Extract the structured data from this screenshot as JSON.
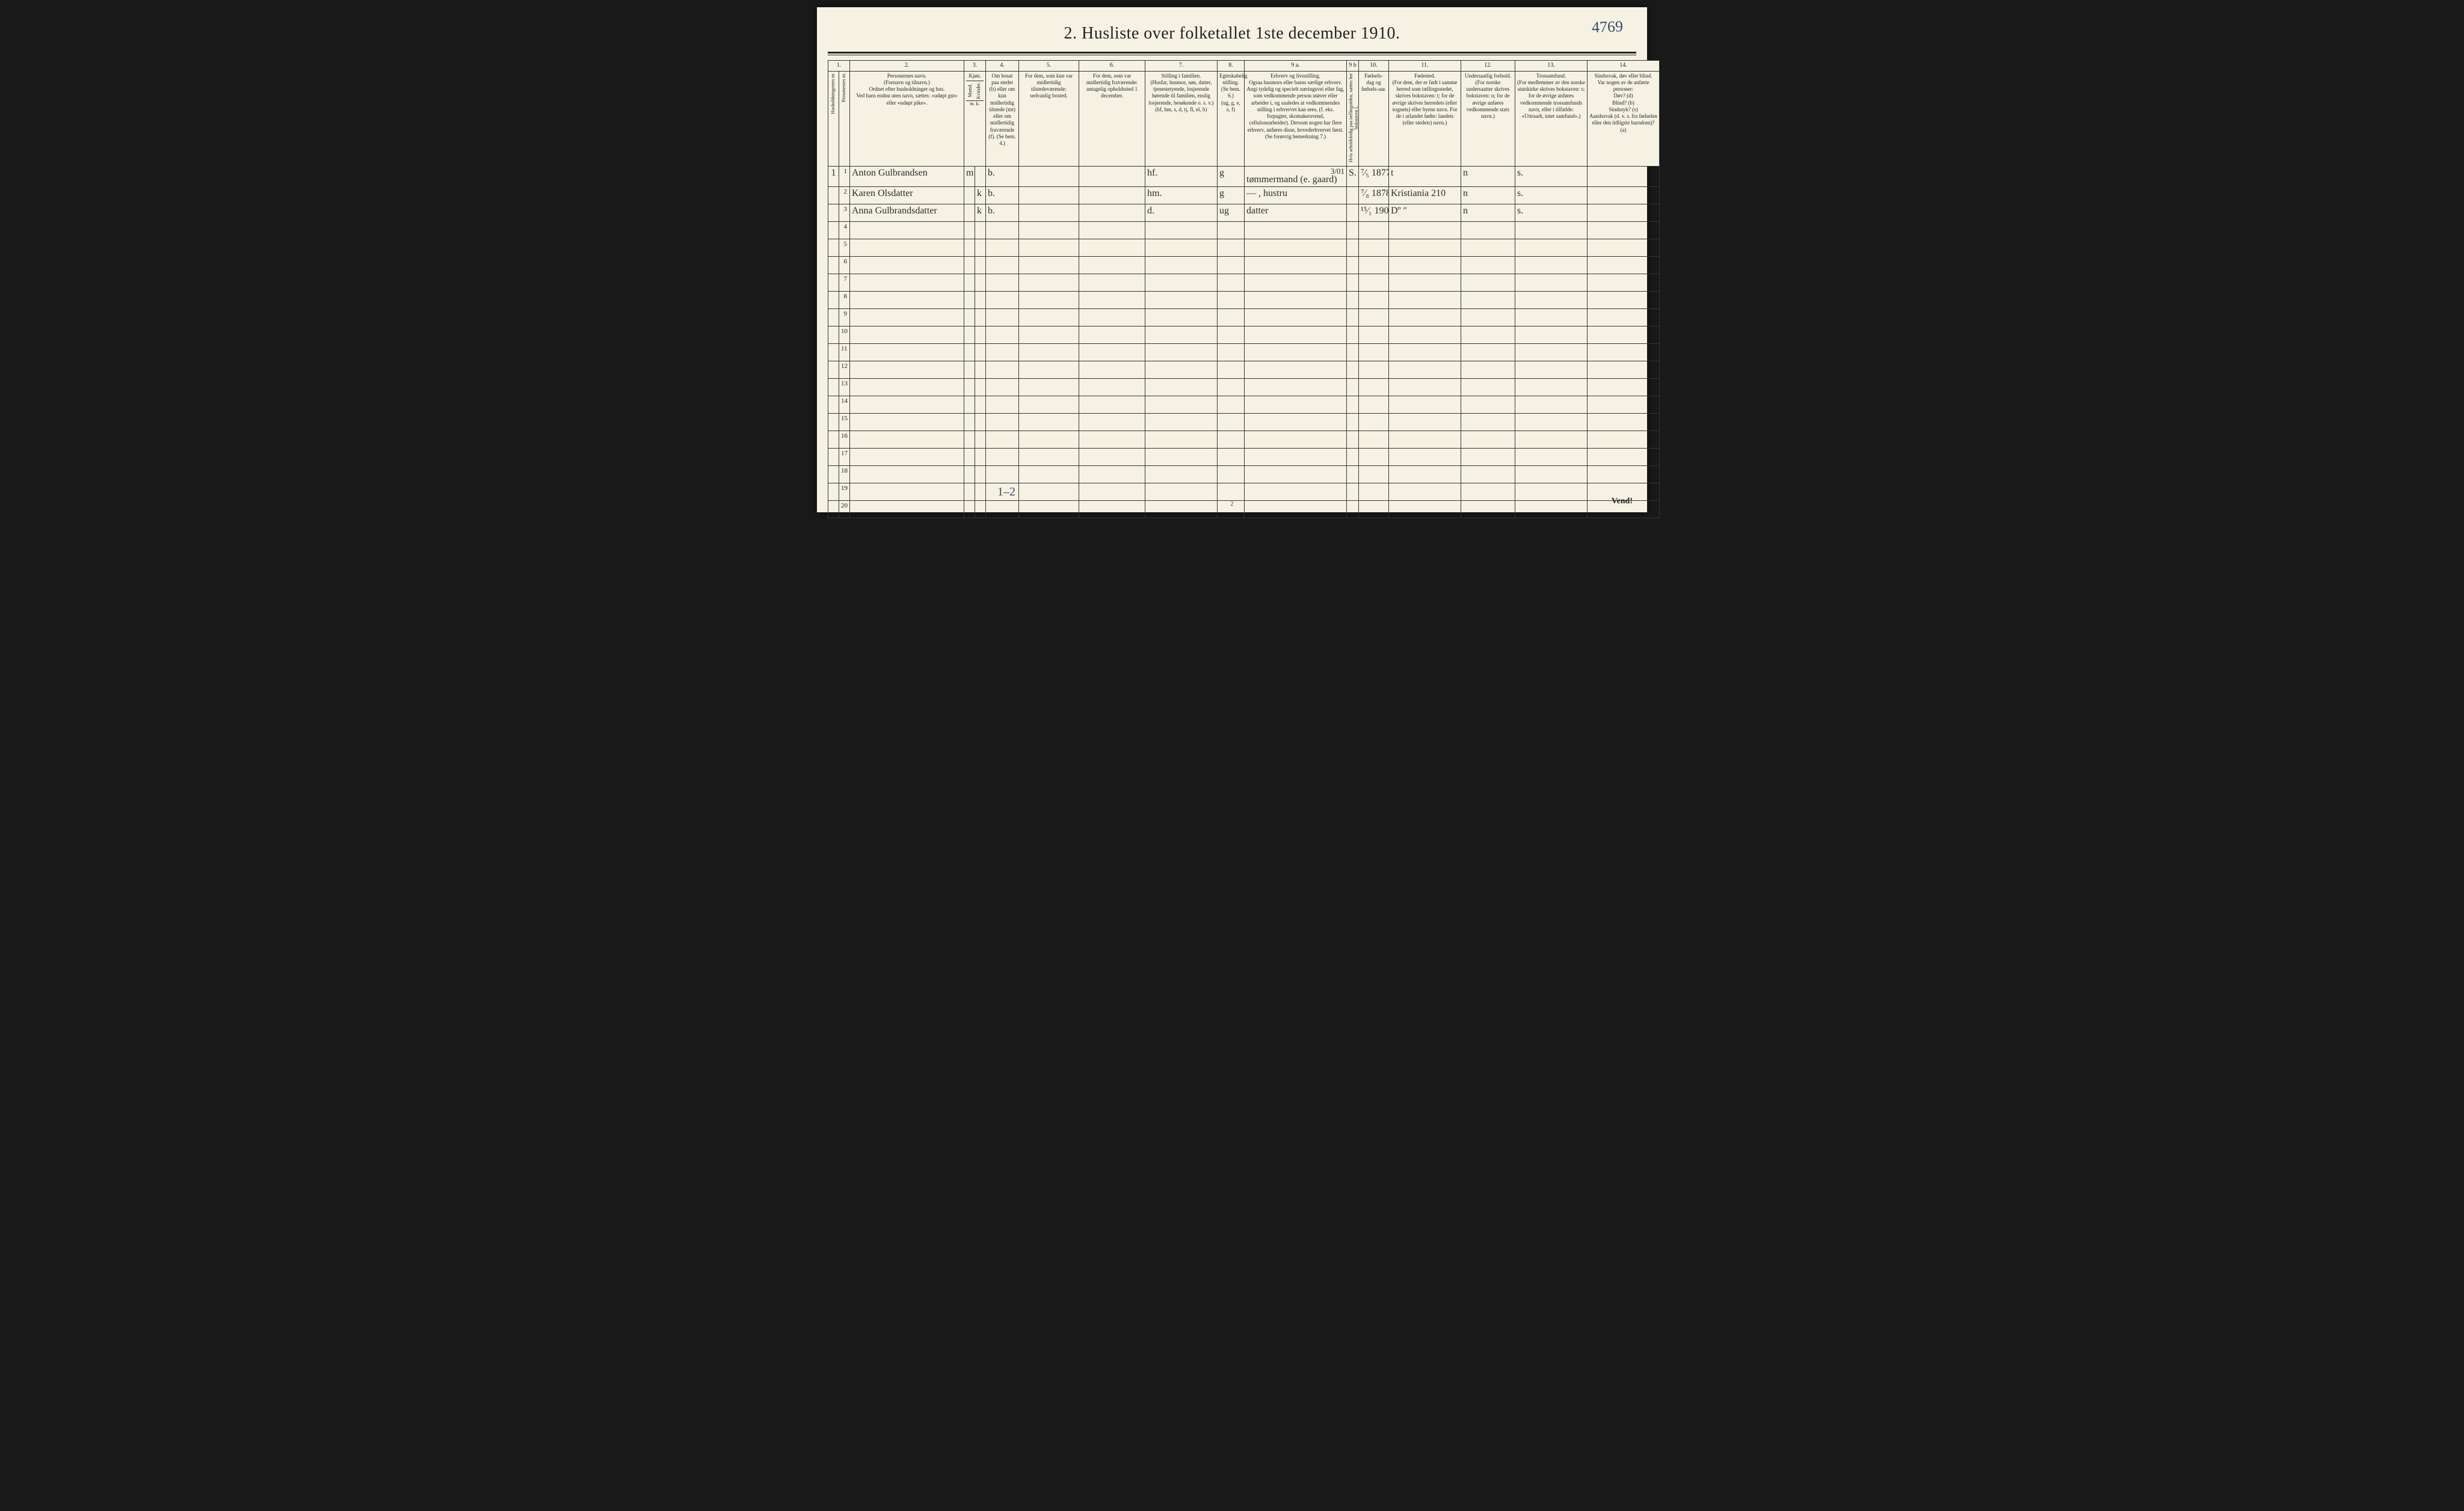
{
  "page": {
    "title": "2.  Husliste over folketallet 1ste december 1910.",
    "topRightHand": "4769",
    "footerHand": "1–2",
    "bottomPageNum": "2",
    "vend": "Vend!"
  },
  "colNumbers": [
    "1.",
    "2.",
    "3.",
    "4.",
    "5.",
    "6.",
    "7.",
    "8.",
    "9 a.",
    "9 b",
    "10.",
    "11.",
    "12.",
    "13.",
    "14."
  ],
  "headers": {
    "c1a": "Husholdningernes nr.",
    "c1b": "Personernes nr.",
    "c2": "Personernes navn.\n(Fornavn og tilnavn.)\nOrdnet efter husholdninger og hus.\nVed barn endnu uten navn, sættes: «udøpt gut» eller «udøpt pike».",
    "c3": "Kjøn.",
    "c3m": "Mænd.",
    "c3k": "Kvinder.",
    "c3mk": "m.   k.",
    "c4": "Om bosat paa stedet (b) eller om kun midlertidig tilstede (mt) eller om midlertidig fraværende (f). (Se bem. 4.)",
    "c5": "For dem, som kun var midlertidig tilstedeværende:\nsedvanlig bosted.",
    "c6": "For dem, som var midlertidig fraværende:\nantagelig opholdssted 1 december.",
    "c7": "Stilling i familien.\n(Husfar, husmor, søn, datter, tjenestetyende, losjerende hørende til familien, enslig losjerende, besøkende o. s. v.)\n(hf, hm, s, d, tj, fl, el, b)",
    "c8": "Egteskabelig stilling.\n(Se bem. 6.)\n(ug, g, e, s, f)",
    "c9a": "Erhverv og livsstilling.\nOgsaa husmors eller barns særlige erhverv. Angi tydelig og specielt næringsvei eller fag, som vedkommende person utøver eller arbeider i, og saaledes at vedkommendes stilling i erhvervet kan sees, (f. eks. forpagter, skomakersvend, cellulosearbeider). Dersom nogen har flere erhverv, anføres disse, hovederhvervet først. (Se forøvrig bemerkning 7.)",
    "c9b": "Hvis arbeidsledig paa tællingstiden, sættes her bokstaven l.",
    "c10": "Fødsels-dag og fødsels-aar.",
    "c11": "Fødested.\n(For dem, der er født i samme herred som tællingsstedet, skrives bokstaven: t; for de øvrige skrives herredets (eller sognets) eller byens navn. For de i utlandet fødte: landets (eller stedets) navn.)",
    "c12": "Undersaatlig forhold.\n(For norske undersaatter skrives bokstaven: n; for de øvrige anføres vedkommende stats navn.)",
    "c13": "Trossamfund.\n(For medlemmer av den norske statskirke skrives bokstaven: s; for de øvrige anføres vedkommende trossamfunds navn, eller i tilfælde: «Uttraadt, intet samfund».)",
    "c14": "Sindssvak, døv eller blind.\nVar nogen av de anførte personer:\nDøv?      (d)\nBlind?    (b)\nSindssyk? (s)\nAandssvak (d. v. s. fra fødselen eller den tidligste barndom)? (a)"
  },
  "annotations": {
    "row1_above9a": "3/01",
    "row1_9b": "S."
  },
  "rows": [
    {
      "hh": "1",
      "pn": "1",
      "name": "Anton Gulbrandsen",
      "sexM": "m",
      "sexK": "",
      "bosat": "b.",
      "c5": "",
      "c6": "",
      "stilling": "hf.",
      "egte": "g",
      "erhverv": "tømmermand (e. gaard)",
      "c9b": "",
      "fodsel": "⁷⁄₅ 1877",
      "fodested": "t",
      "under": "n",
      "tros": "s.",
      "c14": ""
    },
    {
      "hh": "",
      "pn": "2",
      "name": "Karen Olsdatter",
      "sexM": "",
      "sexK": "k",
      "bosat": "b.",
      "c5": "",
      "c6": "",
      "stilling": "hm.",
      "egte": "g",
      "erhverv": "— , hustru",
      "c9b": "",
      "fodsel": "⁷⁄₈ 1878",
      "fodested": "Kristiania  210",
      "under": "n",
      "tros": "s.",
      "c14": ""
    },
    {
      "hh": "",
      "pn": "3",
      "name": "Anna Gulbrandsdatter",
      "sexM": "",
      "sexK": "k",
      "bosat": "b.",
      "c5": "",
      "c6": "",
      "stilling": "d.",
      "egte": "ug",
      "erhverv": "datter",
      "c9b": "",
      "fodsel": "¹⁵⁄₁ 1900",
      "fodested": "Dº  ʺ",
      "under": "n",
      "tros": "s.",
      "c14": ""
    },
    {
      "hh": "",
      "pn": "4"
    },
    {
      "hh": "",
      "pn": "5"
    },
    {
      "hh": "",
      "pn": "6"
    },
    {
      "hh": "",
      "pn": "7"
    },
    {
      "hh": "",
      "pn": "8"
    },
    {
      "hh": "",
      "pn": "9"
    },
    {
      "hh": "",
      "pn": "10"
    },
    {
      "hh": "",
      "pn": "11"
    },
    {
      "hh": "",
      "pn": "12"
    },
    {
      "hh": "",
      "pn": "13"
    },
    {
      "hh": "",
      "pn": "14"
    },
    {
      "hh": "",
      "pn": "15"
    },
    {
      "hh": "",
      "pn": "16"
    },
    {
      "hh": "",
      "pn": "17"
    },
    {
      "hh": "",
      "pn": "18"
    },
    {
      "hh": "",
      "pn": "19"
    },
    {
      "hh": "",
      "pn": "20"
    }
  ],
  "colWidths": {
    "c1a": 18,
    "c1b": 18,
    "c2": 190,
    "c3m": 18,
    "c3k": 18,
    "c4": 55,
    "c5": 100,
    "c6": 110,
    "c7": 120,
    "c8": 45,
    "c9a": 170,
    "c9b": 20,
    "c10": 50,
    "c11": 120,
    "c12": 90,
    "c13": 120,
    "c14": 120
  },
  "style": {
    "paperColor": "#f5f2e4",
    "inkColor": "#222222",
    "handColor": "#2b2b2b",
    "blueHand": "#3b4a6b",
    "titleFontSize": 28,
    "headerFontSize": 9,
    "bodyFontSize": 16
  }
}
